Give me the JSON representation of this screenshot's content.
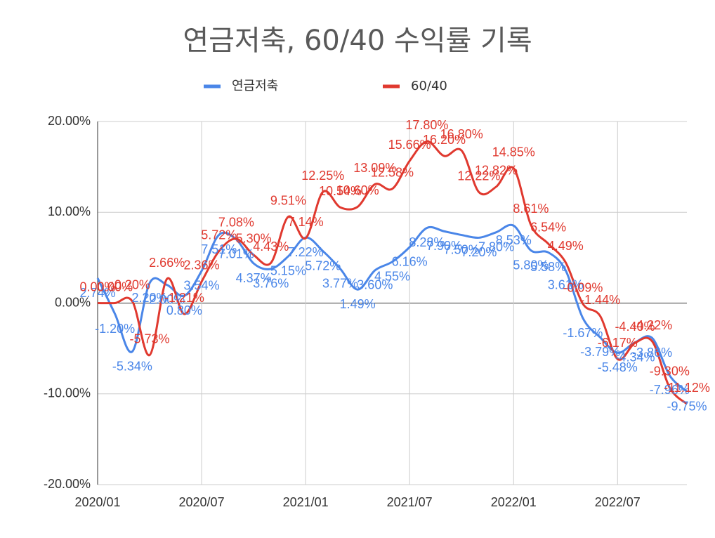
{
  "chart_data": {
    "type": "line",
    "title": "연금저축, 60/40 수익률 기록",
    "categories": [
      "2020/01",
      null,
      null,
      null,
      null,
      null,
      "2020/07",
      null,
      null,
      null,
      null,
      null,
      "2021/01",
      null,
      null,
      null,
      null,
      null,
      "2021/07",
      null,
      null,
      null,
      null,
      null,
      "2022/01",
      null,
      null,
      null,
      null,
      null,
      "2022/07",
      null,
      null,
      null,
      null
    ],
    "series": [
      {
        "name": "연금저축",
        "color": "#4a86e8",
        "values": [
          2.74,
          -1.2,
          -5.34,
          2.2,
          2.0,
          0.8,
          3.54,
          7.51,
          7.01,
          4.37,
          3.76,
          5.15,
          7.22,
          5.72,
          3.77,
          1.49,
          3.6,
          4.55,
          6.16,
          8.28,
          7.9,
          7.5,
          7.2,
          7.8,
          8.53,
          5.8,
          5.58,
          3.61,
          -1.67,
          -3.79,
          -5.48,
          -4.34,
          -3.86,
          -7.96,
          -9.75
        ],
        "value_labels": [
          "2.74%",
          "-1.20%",
          "-5.34%",
          "2.20%",
          "2.00%",
          "0.80%",
          "3.54%",
          "7.51%",
          "7.01%",
          "4.37%",
          "3.76%",
          "5.15%",
          "7.22%",
          "5.72%",
          "3.77%",
          "1.49%",
          "3.60%",
          "4.55%",
          "6.16%",
          "8.28%",
          "7.90%",
          "7.50%",
          "7.20%",
          "7.80%",
          "8.53%",
          "5.80%",
          "5.58%",
          "3.61%",
          "-1.67%",
          "-3.79%",
          "-5.48%",
          "-4.34%",
          "-3.86%",
          "-7.96%",
          "-9.75%"
        ]
      },
      {
        "name": "60/40",
        "color": "#e0392f",
        "values": [
          0.0,
          0.0,
          0.2,
          -5.73,
          2.66,
          -1.21,
          2.36,
          5.72,
          7.08,
          5.3,
          4.43,
          9.51,
          7.14,
          12.25,
          10.54,
          10.6,
          13.09,
          12.58,
          15.66,
          17.8,
          16.2,
          16.8,
          12.22,
          12.82,
          14.85,
          8.61,
          6.54,
          4.49,
          -0.09,
          -1.44,
          -6.17,
          -4.4,
          -4.22,
          -9.3,
          -11.12
        ],
        "value_labels": [
          "0.00%",
          "0.00%",
          "0.20%",
          "-5.73%",
          "2.66%",
          "-1.21%",
          "2.36%",
          "5.72%",
          "7.08%",
          "5.30%",
          "4.43%",
          "9.51%",
          "7.14%",
          "12.25%",
          "10.54%",
          "10.60%",
          "13.09%",
          "12.58%",
          "15.66%",
          "17.80%",
          "16.20%",
          "16.80%",
          "12.22%",
          "12.82%",
          "14.85%",
          "8.61%",
          "6.54%",
          "4.49%",
          "-0.09%",
          "-1.44%",
          "-6.17%",
          "-4.40%",
          "-4.22%",
          "-9.30%",
          "-11.12%"
        ]
      }
    ],
    "ylim": [
      -20,
      20
    ],
    "yticks": [
      {
        "value": -20,
        "label": "-20.00%"
      },
      {
        "value": -10,
        "label": "-10.00%"
      },
      {
        "value": 0,
        "label": "0.00%"
      },
      {
        "value": 10,
        "label": "10.00%"
      },
      {
        "value": 20,
        "label": "20.00%"
      }
    ],
    "grid": true,
    "legend": "top"
  }
}
